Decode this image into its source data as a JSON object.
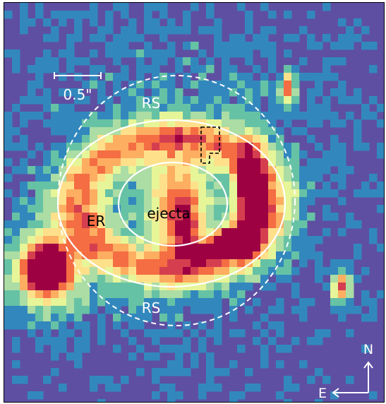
{
  "image": {
    "description_type": "false-color astronomical map",
    "colormap": [
      "#5e4fa2",
      "#3288bd",
      "#66c2a5",
      "#abdda4",
      "#e6f598",
      "#fee08b",
      "#fdae61",
      "#f46d43",
      "#d53e4f",
      "#9e0142"
    ],
    "background_color": "#5e4fa2"
  },
  "labels": {
    "scale_bar": "0.5\"",
    "rs_top": "RS",
    "rs_bottom": "RS",
    "er": "ER",
    "ejecta": "ejecta",
    "north": "N",
    "east": "E"
  }
}
